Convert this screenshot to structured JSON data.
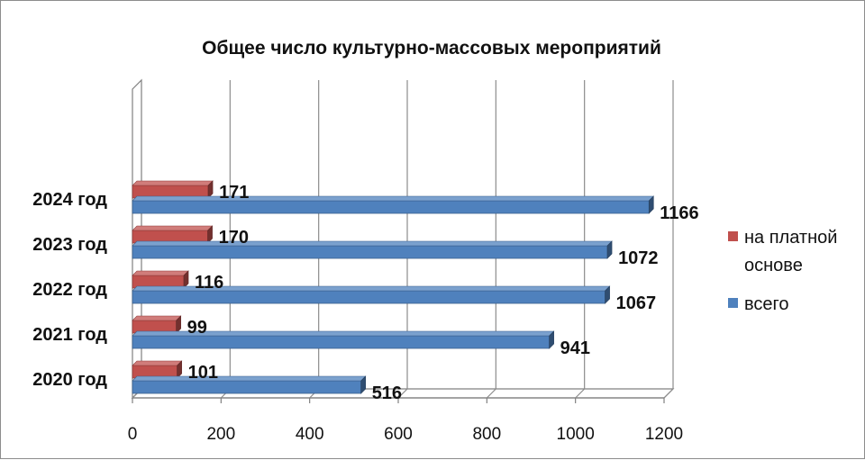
{
  "chart_data": {
    "type": "bar",
    "orientation": "horizontal",
    "title": "Общее число культурно-массовых мероприятий",
    "categories": [
      "2020 год",
      "2021 год",
      "2022 год",
      "2023 год",
      "2024 год"
    ],
    "series": [
      {
        "name": "всего",
        "values": [
          516,
          941,
          1067,
          1072,
          1166
        ],
        "color": "#4f81bd"
      },
      {
        "name": "на платной основе",
        "values": [
          101,
          99,
          116,
          170,
          171
        ],
        "color": "#c0504d"
      }
    ],
    "legend_order": [
      "на платной основе",
      "всего"
    ],
    "xlim": [
      0,
      1200
    ],
    "x_ticks": [
      "0",
      "200",
      "400",
      "600",
      "800",
      "1000",
      "1200"
    ],
    "grid": true,
    "legend_position": "right",
    "style": "3d"
  }
}
